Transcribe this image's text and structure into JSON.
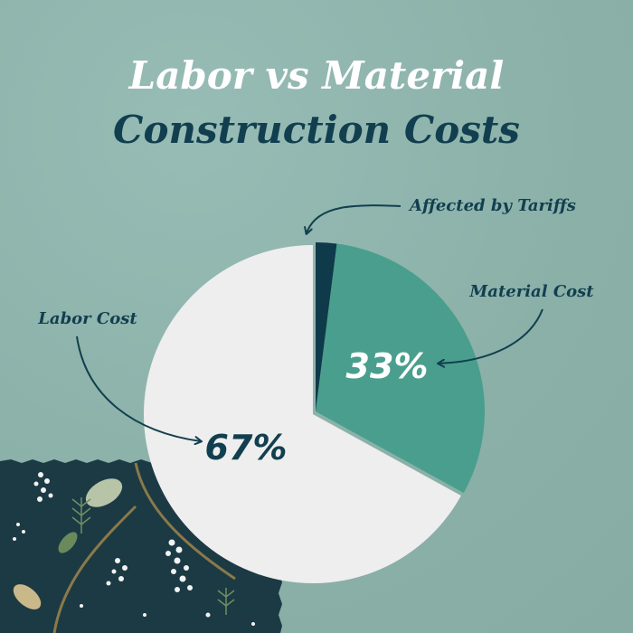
{
  "title_line1": "Labor vs Material",
  "title_line2": "Construction Costs",
  "colors": {
    "background": "#8fb5ae",
    "title_light": "#ffffff",
    "title_dark": "#123f4f",
    "labor": "#eeeeee",
    "material": "#4a9e8d",
    "tariffs": "#0e3a4a",
    "annotation": "#123f4f"
  },
  "chart_data": {
    "type": "pie",
    "title": "Labor vs Material Construction Costs",
    "slices": [
      {
        "label": "Material Cost",
        "value": 33,
        "display": "33%",
        "color": "#4a9e8d",
        "exploded": true
      },
      {
        "label": "Labor Cost",
        "value": 67,
        "display": "67%",
        "color": "#eeeeee",
        "exploded": false
      }
    ],
    "annotations": [
      {
        "text": "Affected by Tariffs",
        "refers_to": "Material Cost",
        "portion_pct": 2
      }
    ]
  },
  "decor": {
    "corner": "floral-fabric-swatch"
  }
}
